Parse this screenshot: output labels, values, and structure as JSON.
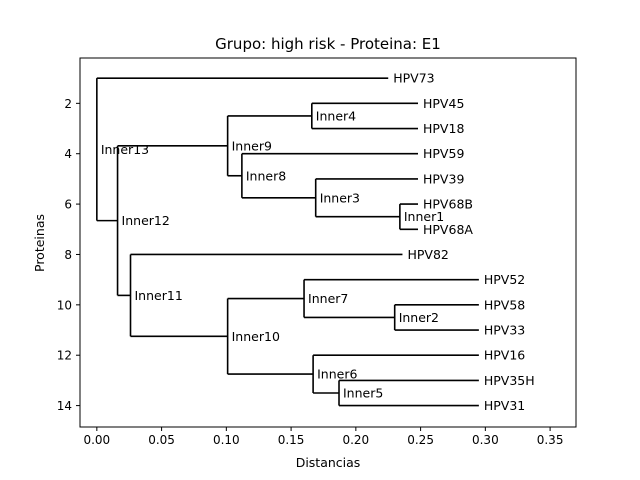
{
  "chart_data": {
    "type": "dendrogram",
    "title": "Grupo: high risk - Proteina: E1",
    "xlabel": "Distancias",
    "ylabel": "Proteinas",
    "xlim": [
      -0.013,
      0.37
    ],
    "ylim": [
      14.85,
      0.2
    ],
    "xticks": [
      0.0,
      0.05,
      0.1,
      0.15,
      0.2,
      0.25,
      0.3,
      0.35
    ],
    "xtick_labels": [
      "0.00",
      "0.05",
      "0.10",
      "0.15",
      "0.20",
      "0.25",
      "0.30",
      "0.35"
    ],
    "yticks": [
      2,
      4,
      6,
      8,
      10,
      12,
      14
    ],
    "ytick_labels": [
      "2",
      "4",
      "6",
      "8",
      "10",
      "12",
      "14"
    ],
    "grid": false,
    "leaves": [
      {
        "name": "HPV73",
        "x": 0.225,
        "y": 1
      },
      {
        "name": "HPV45",
        "x": 0.248,
        "y": 2
      },
      {
        "name": "HPV18",
        "x": 0.248,
        "y": 3
      },
      {
        "name": "HPV59",
        "x": 0.248,
        "y": 4
      },
      {
        "name": "HPV39",
        "x": 0.248,
        "y": 5
      },
      {
        "name": "HPV68B",
        "x": 0.248,
        "y": 6
      },
      {
        "name": "HPV68A",
        "x": 0.248,
        "y": 7
      },
      {
        "name": "HPV82",
        "x": 0.236,
        "y": 8
      },
      {
        "name": "HPV52",
        "x": 0.295,
        "y": 9
      },
      {
        "name": "HPV58",
        "x": 0.295,
        "y": 10
      },
      {
        "name": "HPV33",
        "x": 0.295,
        "y": 11
      },
      {
        "name": "HPV16",
        "x": 0.295,
        "y": 12
      },
      {
        "name": "HPV35H",
        "x": 0.295,
        "y": 13
      },
      {
        "name": "HPV31",
        "x": 0.295,
        "y": 14
      }
    ],
    "clades": [
      {
        "name": "Inner1",
        "x": 0.234,
        "children": [
          "HPV68B",
          "HPV68A"
        ]
      },
      {
        "name": "Inner2",
        "x": 0.23,
        "children": [
          "HPV58",
          "HPV33"
        ]
      },
      {
        "name": "Inner3",
        "x": 0.169,
        "children": [
          "HPV39",
          "Inner1"
        ]
      },
      {
        "name": "Inner4",
        "x": 0.166,
        "children": [
          "HPV45",
          "HPV18"
        ]
      },
      {
        "name": "Inner5",
        "x": 0.187,
        "children": [
          "HPV35H",
          "HPV31"
        ]
      },
      {
        "name": "Inner6",
        "x": 0.167,
        "children": [
          "HPV16",
          "Inner5"
        ]
      },
      {
        "name": "Inner7",
        "x": 0.16,
        "children": [
          "HPV52",
          "Inner2"
        ]
      },
      {
        "name": "Inner8",
        "x": 0.112,
        "children": [
          "HPV59",
          "Inner3"
        ]
      },
      {
        "name": "Inner9",
        "x": 0.101,
        "children": [
          "Inner4",
          "Inner8"
        ]
      },
      {
        "name": "Inner10",
        "x": 0.101,
        "children": [
          "Inner7",
          "Inner6"
        ]
      },
      {
        "name": "Inner11",
        "x": 0.026,
        "children": [
          "HPV82",
          "Inner10"
        ]
      },
      {
        "name": "Inner12",
        "x": 0.016,
        "children": [
          "Inner9",
          "Inner11"
        ]
      },
      {
        "name": "Inner13",
        "x": 0.0,
        "children": [
          "HPV73",
          "Inner12"
        ]
      }
    ]
  }
}
